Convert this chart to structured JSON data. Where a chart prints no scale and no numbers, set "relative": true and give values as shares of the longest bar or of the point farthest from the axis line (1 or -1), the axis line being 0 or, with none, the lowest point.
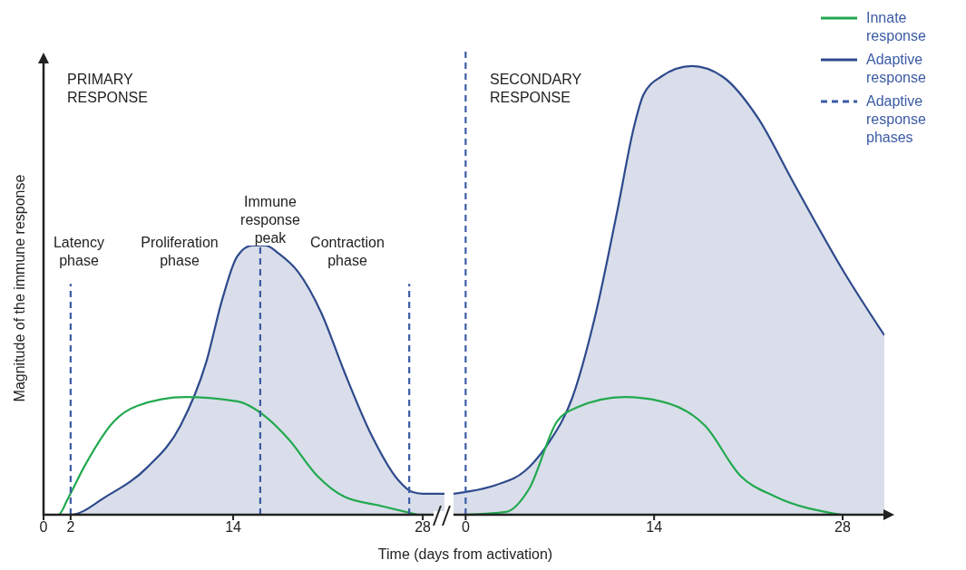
{
  "chart_data": [
    {
      "type": "line",
      "relative": true,
      "ylabel": "Magnitude of the immune response",
      "xlabel": "Time (days from activation)",
      "xlim": [
        0,
        29.6
      ],
      "xticks": [
        0,
        2,
        14,
        28
      ],
      "annotations": [
        "PRIMARY RESPONSE",
        "Latency phase",
        "Proliferation phase",
        "Immune response peak",
        "Contraction phase"
      ],
      "series": [
        {
          "type": "area",
          "color": "#2e4a8c",
          "x": [
            0,
            2,
            4.6,
            7.7,
            10.1,
            12,
            13.2,
            14.3,
            15.4,
            16.4,
            17.4,
            18.8,
            20.5,
            22.2,
            24.2,
            26.2,
            27.2,
            28,
            29.6
          ],
          "values": [
            0,
            0,
            0.067,
            0.178,
            0.33,
            0.565,
            0.801,
            0.96,
            1,
            1,
            0.969,
            0.902,
            0.751,
            0.532,
            0.297,
            0.128,
            0.085,
            0.078,
            0.078
          ]
        },
        {
          "color": "#22a94f",
          "x": [
            0,
            1.1,
            1.8,
            3,
            5.2,
            6.9,
            10.5,
            14.3,
            16.4,
            18.1,
            20.2,
            22.2,
            24.9,
            27.6
          ],
          "values": [
            0,
            0,
            0.06,
            0.178,
            0.347,
            0.404,
            0.437,
            0.421,
            0.364,
            0.28,
            0.145,
            0.067,
            0.033,
            0
          ]
        },
        {
          "color": "#3b5ba5",
          "line_style": "dashed",
          "x": [
            2,
            2
          ],
          "values": [
            0,
            0.858
          ]
        },
        {
          "color": "#3b5ba5",
          "line_style": "dashed",
          "x": [
            16,
            16
          ],
          "values": [
            0,
            1
          ]
        },
        {
          "color": "#3b5ba5",
          "line_style": "dashed",
          "x": [
            27,
            27
          ],
          "values": [
            0,
            0.858
          ]
        }
      ]
    },
    {
      "type": "line",
      "relative": true,
      "legend": "top right",
      "xlim": [
        -0.9,
        31.1
      ],
      "xticks": [
        0,
        14,
        28
      ],
      "annotations": [
        "SECONDARY RESPONSE"
      ],
      "series": [
        {
          "name": "Innate response",
          "color": "#22a94f",
          "x": [
            0,
            3,
            4.7,
            6.8,
            8.2,
            11.8,
            14.5,
            17.8,
            20.4,
            23,
            27.9
          ],
          "values": [
            0,
            0.006,
            0.055,
            0.201,
            0.23,
            0.253,
            0.244,
            0.191,
            0.084,
            0.039,
            0
          ]
        },
        {
          "type": "area",
          "name": "Adaptive response",
          "color": "#2e4a8c",
          "x": [
            -0.9,
            0,
            2.25,
            4.4,
            6.1,
            7.9,
            9.6,
            11.3,
            12.5,
            13.2,
            14.5,
            16.8,
            19.1,
            21.7,
            24.3,
            28.1,
            31.1
          ],
          "values": [
            0.045,
            0.049,
            0.064,
            0.094,
            0.152,
            0.25,
            0.425,
            0.659,
            0.834,
            0.903,
            0.942,
            0.965,
            0.942,
            0.854,
            0.717,
            0.522,
            0.386
          ]
        },
        {
          "name": "Adaptive response phases",
          "color": "#3b5ba5",
          "line_style": "dashed",
          "x": [
            0,
            0
          ],
          "values": [
            0,
            1
          ]
        }
      ]
    }
  ]
}
